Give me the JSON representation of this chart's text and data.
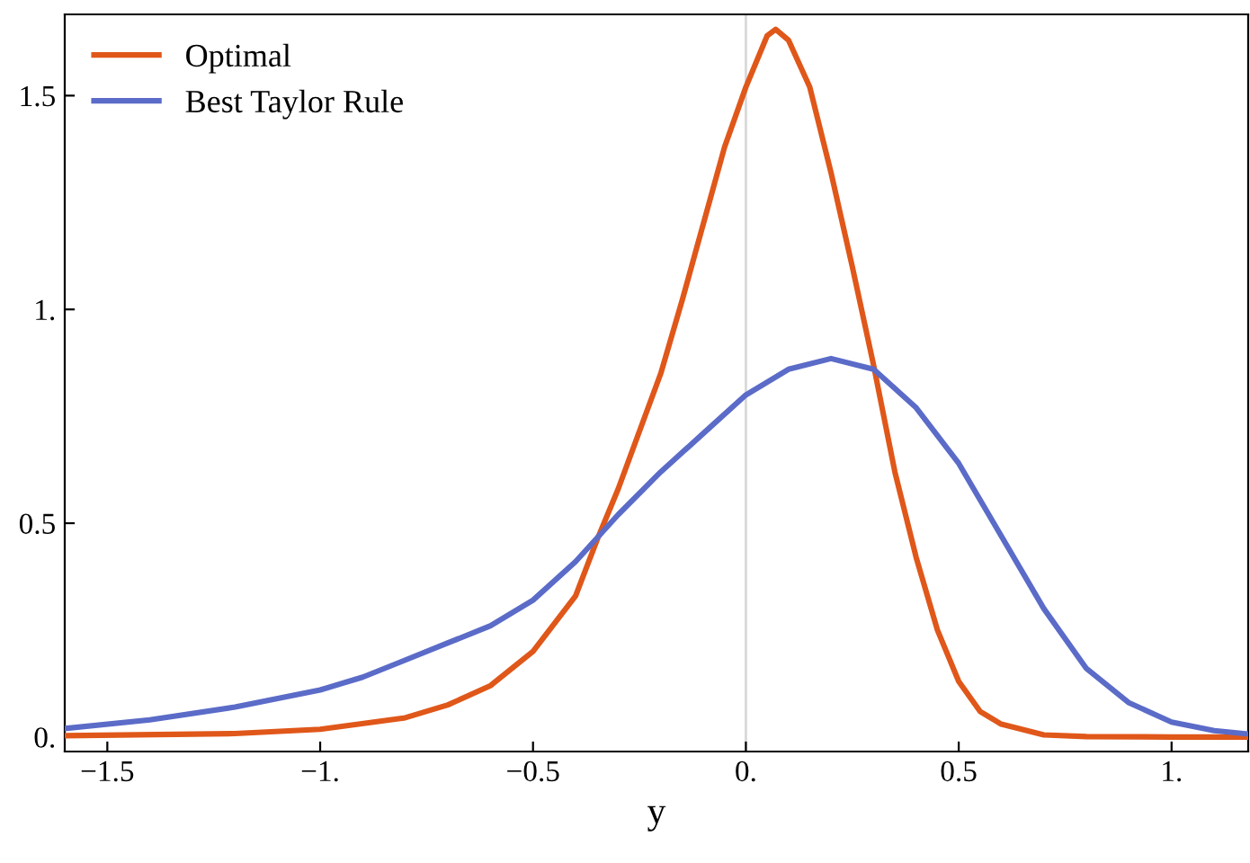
{
  "chart_data": {
    "type": "line",
    "xlabel": "y",
    "xlim": [
      -1.6,
      1.18
    ],
    "ylim": [
      -0.034,
      1.69
    ],
    "xticks": [
      {
        "value": -1.5,
        "label": "−1.5"
      },
      {
        "value": -1,
        "label": "−1."
      },
      {
        "value": -0.5,
        "label": "−0.5"
      },
      {
        "value": 0,
        "label": "0."
      },
      0.5,
      {
        "value": 1,
        "label": "1."
      }
    ],
    "yticks": [
      {
        "value": 0,
        "label": "0."
      },
      0.5,
      {
        "value": 1,
        "label": "1."
      },
      1.5
    ],
    "grid": false,
    "legend": "top left",
    "line_style": "solid",
    "marker": "none",
    "ref_lines": [
      {
        "axis": "x",
        "value": 0,
        "label": null,
        "color": "#d9d9d9"
      }
    ],
    "series": [
      {
        "name": "Optimal",
        "color": "#e0571a",
        "x": [
          -1.6,
          -1.2,
          -1.0,
          -0.8,
          -0.7,
          -0.6,
          -0.5,
          -0.4,
          -0.35,
          -0.3,
          -0.2,
          -0.15,
          -0.1,
          -0.05,
          0,
          0.05,
          0.07,
          0.1,
          0.15,
          0.2,
          0.25,
          0.3,
          0.35,
          0.4,
          0.45,
          0.5,
          0.55,
          0.6,
          0.7,
          0.8,
          1.0,
          1.18
        ],
        "values": [
          0.003,
          0.008,
          0.018,
          0.045,
          0.075,
          0.12,
          0.2,
          0.33,
          0.46,
          0.58,
          0.85,
          1.02,
          1.2,
          1.38,
          1.52,
          1.64,
          1.655,
          1.63,
          1.52,
          1.32,
          1.1,
          0.87,
          0.62,
          0.42,
          0.25,
          0.13,
          0.06,
          0.03,
          0.005,
          0.001,
          0,
          0
        ]
      },
      {
        "name": "Best Taylor Rule",
        "color": "#5b6bc8",
        "x": [
          -1.6,
          -1.4,
          -1.2,
          -1.0,
          -0.9,
          -0.8,
          -0.7,
          -0.6,
          -0.5,
          -0.4,
          -0.3,
          -0.2,
          -0.1,
          0,
          0.1,
          0.2,
          0.3,
          0.4,
          0.5,
          0.6,
          0.7,
          0.8,
          0.9,
          1.0,
          1.1,
          1.18
        ],
        "values": [
          0.02,
          0.04,
          0.07,
          0.11,
          0.14,
          0.18,
          0.22,
          0.26,
          0.32,
          0.41,
          0.52,
          0.62,
          0.71,
          0.8,
          0.86,
          0.885,
          0.86,
          0.77,
          0.64,
          0.47,
          0.3,
          0.16,
          0.08,
          0.035,
          0.015,
          0.007
        ]
      }
    ]
  }
}
